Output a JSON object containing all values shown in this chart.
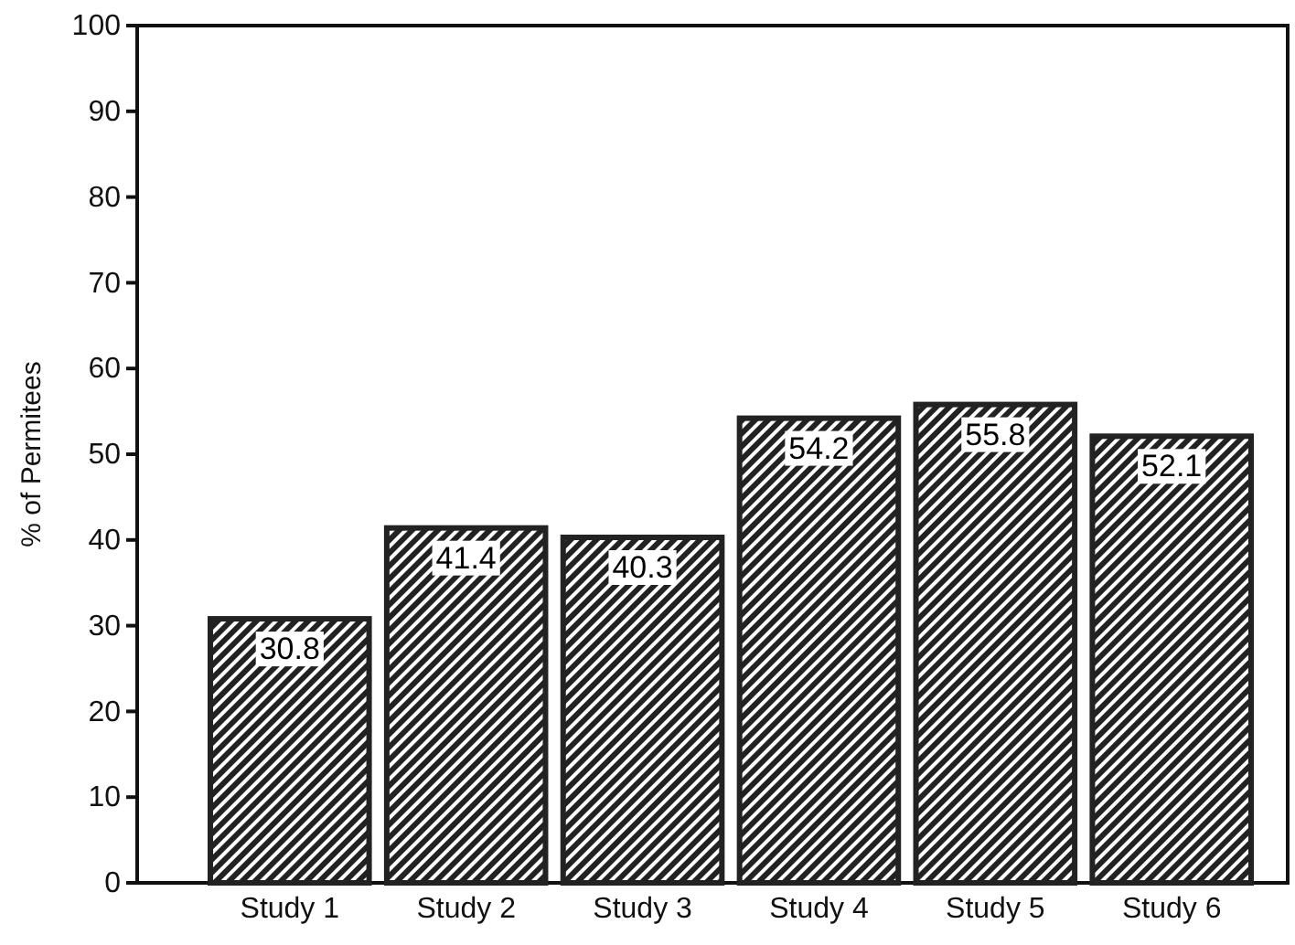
{
  "chart_data": {
    "type": "bar",
    "ylabel": "% of Permitees",
    "categories": [
      "Study 1",
      "Study 2",
      "Study 3",
      "Study 4",
      "Study 5",
      "Study 6"
    ],
    "values": [
      30.8,
      41.4,
      40.3,
      54.2,
      55.8,
      52.1
    ],
    "color": "#222222",
    "ylim": [
      0,
      100
    ],
    "yticks": [
      0,
      10,
      20,
      30,
      40,
      50,
      60,
      70,
      80,
      90,
      100
    ],
    "data_labels": true,
    "grid": false
  }
}
